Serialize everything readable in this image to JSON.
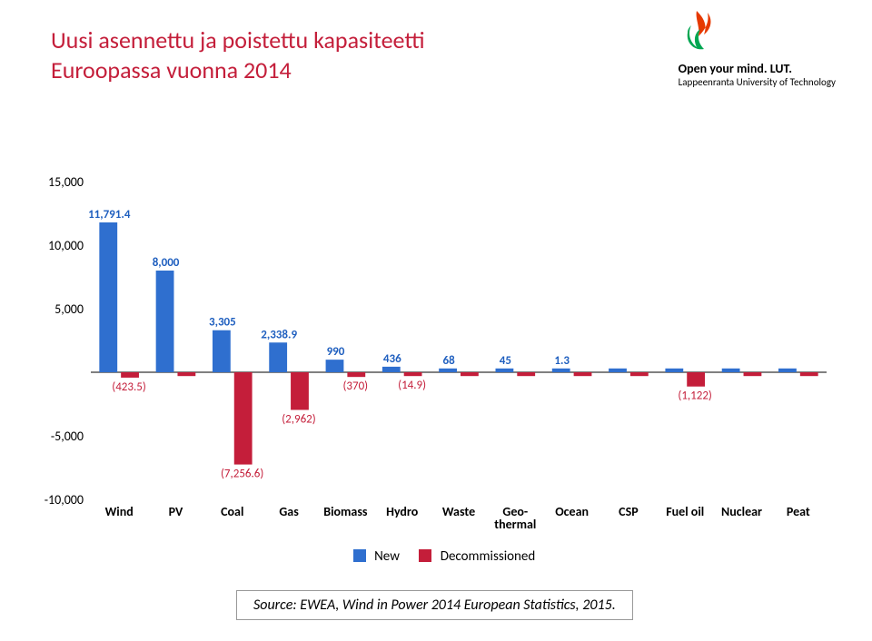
{
  "title_line1": "Uusi asennettu ja poistettu kapasiteetti",
  "title_line2": "Euroopassa vuonna 2014",
  "title_color": "#c41e3a",
  "logo": {
    "tagline1": "Open your mind. LUT.",
    "tagline2": "Lappeenranta University of Technology",
    "icon_colors": [
      "#e63900",
      "#00a651"
    ]
  },
  "chart": {
    "type": "bar",
    "ylim": [
      -10000,
      15000
    ],
    "ytick_step": 5000,
    "yticks": [
      -10000,
      -5000,
      5000,
      10000,
      15000
    ],
    "ytick_labels": [
      "-10,000",
      "-5,000",
      "5,000",
      "10,000",
      "15,000"
    ],
    "ytick_fontsize": 14,
    "categories": [
      "Wind",
      "PV",
      "Coal",
      "Gas",
      "Biomass",
      "Hydro",
      "Waste",
      "Geo-\nthermal",
      "Ocean",
      "CSP",
      "Fuel oil",
      "Nuclear",
      "Peat"
    ],
    "cat_fontsize": 14,
    "series": [
      {
        "name": "New",
        "color": "#2f6fcf",
        "values": [
          11791.4,
          8000,
          3305,
          2338.9,
          990,
          436,
          68,
          45,
          1.3,
          200,
          180,
          160,
          140
        ],
        "labels": [
          "11,791.4",
          "8,000",
          "3,305",
          "2,338.9",
          "990",
          "436",
          "68",
          "45",
          "1.3",
          "",
          "",
          "",
          ""
        ]
      },
      {
        "name": "Decommissioned",
        "color": "#c41e3a",
        "values": [
          -423.5,
          -150,
          -7256.6,
          -2962,
          -370,
          -14.9,
          -150,
          -150,
          -150,
          -150,
          -1122,
          -150,
          -150
        ],
        "labels": [
          "(423.5)",
          "",
          "(7,256.6)",
          "(2,962)",
          "(370)",
          "(14.9)",
          "",
          "",
          "",
          "",
          "(1,122)",
          "",
          ""
        ]
      }
    ],
    "label_fontsize": 13,
    "bar_width": 0.35,
    "axis_color": "#000000",
    "background_color": "#ffffff"
  },
  "legend": {
    "items": [
      {
        "label": "New",
        "color": "#2f6fcf"
      },
      {
        "label": "Decommissioned",
        "color": "#c41e3a"
      }
    ]
  },
  "source": "Source: EWEA, Wind in Power 2014 European Statistics, 2015."
}
